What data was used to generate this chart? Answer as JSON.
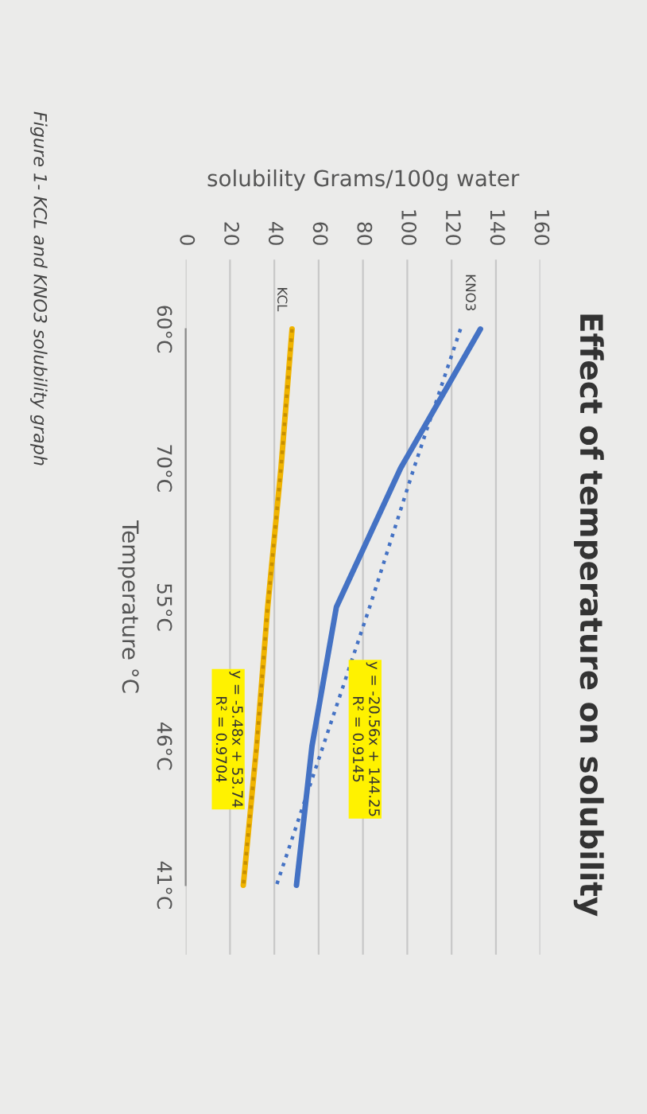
{
  "chart_data": {
    "type": "line",
    "title": "Effect of temperature on solubility",
    "xlabel": "solubility Grams/100g water",
    "ylabel": "Temperature °C",
    "orientation": "horizontal",
    "categories": [
      "60°C",
      "70°C",
      "55°C",
      "46°C",
      "41°C"
    ],
    "series": [
      {
        "name": "KNO3",
        "color": "#4472c4",
        "values": [
          133,
          97,
          68,
          57,
          50
        ],
        "line_style": "solid"
      },
      {
        "name": "KCL",
        "color": "#f0b400",
        "values": [
          48,
          43,
          37,
          32,
          26
        ],
        "line_style": "solid"
      },
      {
        "color": "#4472c4",
        "values": [
          124,
          103,
          83,
          62,
          41
        ],
        "line_style": "dotted"
      },
      {
        "color": "#c89000",
        "values": [
          48,
          43,
          37,
          32,
          26
        ],
        "line_style": "dotted"
      }
    ],
    "xlim": [
      0,
      160
    ],
    "xticks": [
      0,
      20,
      40,
      60,
      80,
      100,
      120,
      140,
      160
    ],
    "grid": "x",
    "marker": "none",
    "annotations": [
      "y = -20.56x + 144.25\nR² = 0.9145",
      "y = -5.48x + 53.74\nR² = 0.9704",
      "Figure 1- KCL and KNO3 solubility graph"
    ]
  }
}
